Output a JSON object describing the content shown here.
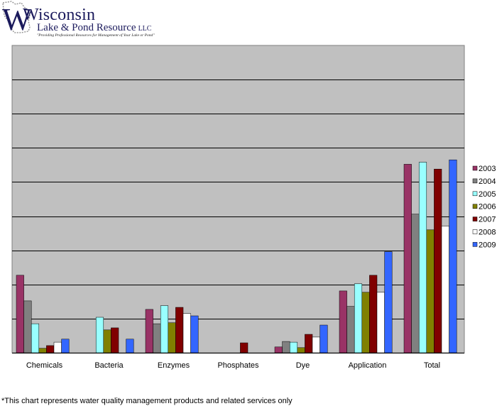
{
  "logo": {
    "name": "Wisconsin",
    "subtitle": "Lake & Pond Resource",
    "suffix": "LLC",
    "tagline": "\"Providing Professional Resources for Management of Your Lake or Pond\""
  },
  "footnote": "*This chart represents water quality management products and related services only",
  "colors": {
    "plot_background": "#c0c0c0",
    "gridline": "#000000",
    "series": [
      "#993366",
      "#808080",
      "#99ffff",
      "#808000",
      "#800000",
      "#ffffff",
      "#3366ff"
    ]
  },
  "chart_data": {
    "type": "bar",
    "title": "",
    "xlabel": "",
    "ylabel": "",
    "categories": [
      "Chemicals",
      "Bacteria",
      "Enzymes",
      "Phosphates",
      "Dye",
      "Application",
      "Total"
    ],
    "ylim": [
      0,
      9
    ],
    "grid": true,
    "legend_position": "right",
    "series": [
      {
        "name": "2003",
        "values": [
          2.27,
          0,
          1.27,
          0,
          0.17,
          1.81,
          5.52
        ]
      },
      {
        "name": "2004",
        "values": [
          1.52,
          0,
          0.85,
          0,
          0.33,
          1.36,
          4.06
        ]
      },
      {
        "name": "2005",
        "values": [
          0.85,
          1.04,
          1.38,
          0,
          0.31,
          2.02,
          5.58
        ]
      },
      {
        "name": "2006",
        "values": [
          0.13,
          0.67,
          0.88,
          0,
          0.15,
          1.77,
          3.6
        ]
      },
      {
        "name": "2007",
        "values": [
          0.21,
          0.73,
          1.33,
          0.29,
          0.54,
          2.27,
          5.38
        ]
      },
      {
        "name": "2008",
        "values": [
          0.31,
          0,
          1.15,
          0,
          0.46,
          1.77,
          3.71
        ]
      },
      {
        "name": "2009",
        "values": [
          0.4,
          0.4,
          1.08,
          0,
          0.81,
          2.96,
          5.65
        ]
      }
    ]
  }
}
